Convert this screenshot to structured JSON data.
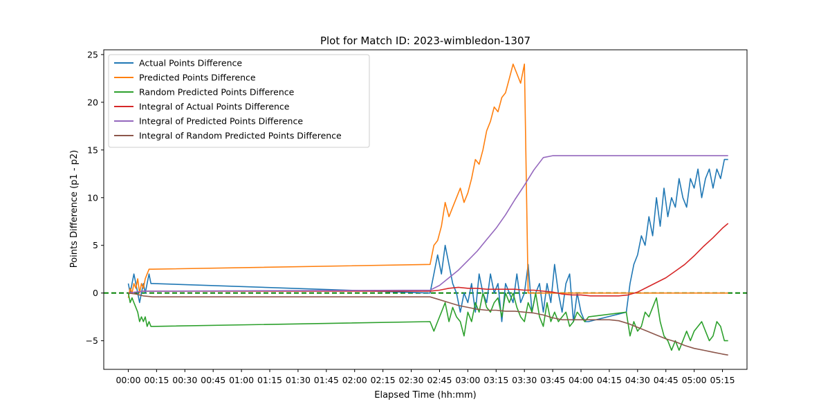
{
  "chart_data": {
    "type": "line",
    "title": "Plot for Match ID: 2023-wimbledon-1307",
    "xlabel": "Elapsed Time (hh:mm)",
    "ylabel": "Points Difference (p1 - p2)",
    "x_unit": "minutes",
    "xlim": [
      -13,
      328
    ],
    "ylim": [
      -8,
      25.5
    ],
    "x_ticks": [
      0,
      15,
      30,
      45,
      60,
      75,
      90,
      105,
      120,
      135,
      150,
      165,
      180,
      195,
      210,
      225,
      240,
      255,
      270,
      285,
      300,
      315
    ],
    "x_tick_labels": [
      "00:00",
      "00:15",
      "00:30",
      "00:45",
      "01:00",
      "01:15",
      "01:30",
      "01:45",
      "02:00",
      "02:15",
      "02:30",
      "02:45",
      "03:00",
      "03:15",
      "03:30",
      "03:45",
      "04:00",
      "04:15",
      "04:30",
      "04:45",
      "05:00",
      "05:15"
    ],
    "y_ticks": [
      -5,
      0,
      5,
      10,
      15,
      20,
      25
    ],
    "y_tick_labels": [
      "−5",
      "0",
      "5",
      "10",
      "15",
      "20",
      "25"
    ],
    "grid": false,
    "legend_position": "upper-left",
    "reference_line": {
      "y": 0,
      "color": "#008000",
      "style": "dashed"
    },
    "series": [
      {
        "name": "Actual Points Difference",
        "color": "#1f77b4",
        "x": [
          0,
          1,
          2,
          3,
          4,
          5,
          6,
          7,
          8,
          9,
          10,
          11,
          12,
          13,
          160,
          162,
          164,
          166,
          168,
          170,
          172,
          174,
          176,
          178,
          180,
          182,
          184,
          186,
          188,
          190,
          192,
          194,
          196,
          198,
          200,
          202,
          204,
          206,
          208,
          210,
          212,
          214,
          216,
          218,
          220,
          222,
          224,
          226,
          228,
          230,
          232,
          234,
          236,
          238,
          240,
          242,
          244,
          264,
          266,
          268,
          270,
          272,
          274,
          276,
          278,
          280,
          282,
          284,
          286,
          288,
          290,
          292,
          294,
          296,
          298,
          300,
          302,
          304,
          306,
          308,
          310,
          312,
          314,
          316,
          318
        ],
        "y": [
          1,
          0,
          1,
          2,
          1,
          0,
          -1,
          0,
          1,
          0,
          1,
          2,
          1,
          1,
          0,
          2,
          4,
          2,
          5,
          3,
          1,
          0,
          -2,
          0,
          -1,
          1,
          -2,
          2,
          0,
          -1,
          2,
          0,
          1,
          -3,
          1,
          0,
          -1,
          2,
          -1,
          0,
          3,
          -2,
          0,
          1,
          -2,
          1,
          -1,
          3,
          0,
          -2,
          1,
          2,
          -3,
          0,
          -2,
          -3,
          -3,
          -2,
          1,
          3,
          4,
          6,
          5,
          8,
          6,
          10,
          7,
          11,
          8,
          10,
          9,
          12,
          10,
          9,
          12,
          11,
          13,
          10,
          12,
          13,
          11,
          13,
          12,
          14,
          14
        ]
      },
      {
        "name": "Predicted Points Difference",
        "color": "#ff7f0e",
        "x": [
          0,
          1,
          2,
          3,
          4,
          5,
          6,
          7,
          8,
          9,
          10,
          11,
          12,
          13,
          160,
          162,
          164,
          166,
          168,
          170,
          172,
          174,
          176,
          178,
          180,
          182,
          184,
          186,
          188,
          190,
          192,
          194,
          196,
          198,
          200,
          202,
          204,
          206,
          208,
          210,
          212,
          214,
          216,
          218,
          220,
          222,
          224,
          226,
          228,
          230,
          232,
          234,
          236,
          238,
          240,
          242,
          244,
          264,
          266,
          268,
          270,
          272,
          274,
          276,
          278,
          280,
          282,
          284,
          286,
          288,
          290,
          292,
          294,
          296,
          298,
          300,
          302,
          304,
          306,
          308,
          310,
          312,
          314,
          316,
          318
        ],
        "y": [
          -0.5,
          0.5,
          0,
          1,
          0.5,
          1.5,
          0,
          1,
          0.5,
          1.5,
          2,
          2.5,
          2.5,
          2.5,
          3,
          5,
          5.5,
          7,
          9.5,
          8,
          9,
          10,
          11,
          9.5,
          10.5,
          12,
          14,
          13.5,
          15,
          17,
          18,
          19.5,
          19,
          20.5,
          21,
          22.5,
          24,
          23,
          22,
          24,
          0,
          0,
          0,
          0,
          0,
          0,
          0,
          0,
          0,
          0,
          0,
          0,
          0,
          0,
          0,
          0,
          0,
          0,
          0,
          0,
          0,
          0,
          0,
          0,
          0,
          0,
          0,
          0,
          0,
          0,
          0,
          0,
          0,
          0,
          0,
          0,
          0,
          0,
          0,
          0,
          0,
          0,
          0,
          0,
          0
        ]
      },
      {
        "name": "Random Predicted Points Difference",
        "color": "#2ca02c",
        "x": [
          0,
          1,
          2,
          3,
          4,
          5,
          6,
          7,
          8,
          9,
          10,
          11,
          12,
          13,
          160,
          162,
          164,
          166,
          168,
          170,
          172,
          174,
          176,
          178,
          180,
          182,
          184,
          186,
          188,
          190,
          192,
          194,
          196,
          198,
          200,
          202,
          204,
          206,
          208,
          210,
          212,
          214,
          216,
          218,
          220,
          222,
          224,
          226,
          228,
          230,
          232,
          234,
          236,
          238,
          240,
          242,
          244,
          264,
          266,
          268,
          270,
          272,
          274,
          276,
          278,
          280,
          282,
          284,
          286,
          288,
          290,
          292,
          294,
          296,
          298,
          300,
          302,
          304,
          306,
          308,
          310,
          312,
          314,
          316,
          318
        ],
        "y": [
          0,
          -1,
          -0.5,
          -1,
          -1.5,
          -2,
          -3,
          -2.5,
          -3,
          -2.5,
          -3.5,
          -3,
          -3.5,
          -3.5,
          -3,
          -4,
          -3,
          -2,
          -1,
          -3,
          -1.5,
          -2.5,
          -3,
          -4.5,
          -2,
          -3,
          -1,
          -2,
          0,
          -1.5,
          -2,
          -1,
          -0.5,
          -2.5,
          0,
          -1,
          0,
          -1.5,
          -2.5,
          -3,
          -1,
          -2,
          0,
          -2.5,
          -3.5,
          -1,
          -3,
          -2,
          -3,
          -2.5,
          -2,
          -3.5,
          -3,
          -2,
          -2.5,
          -3,
          -2.5,
          -2,
          -4.5,
          -3,
          -4,
          -3.5,
          -2,
          -2.5,
          -1.5,
          -0.5,
          -3,
          -4.5,
          -5,
          -6,
          -5,
          -6,
          -5,
          -4,
          -5,
          -4,
          -3.5,
          -3,
          -4,
          -5,
          -4.5,
          -3,
          -3.5,
          -5,
          -5
        ]
      },
      {
        "name": "Integral of Actual Points Difference",
        "color": "#d62728",
        "x": [
          0,
          4,
          8,
          13,
          160,
          165,
          170,
          175,
          180,
          185,
          190,
          195,
          200,
          205,
          210,
          215,
          220,
          225,
          230,
          235,
          240,
          245,
          250,
          255,
          260,
          265,
          270,
          275,
          280,
          285,
          290,
          295,
          300,
          305,
          310,
          315,
          318
        ],
        "y": [
          0,
          0.1,
          0.2,
          0.2,
          0.2,
          0.3,
          0.5,
          0.6,
          0.5,
          0.5,
          0.4,
          0.4,
          0.4,
          0.4,
          0.3,
          0.3,
          0.2,
          0.1,
          -0.1,
          -0.2,
          -0.2,
          -0.3,
          -0.3,
          -0.3,
          -0.3,
          -0.2,
          0.1,
          0.6,
          1.1,
          1.6,
          2.3,
          3.0,
          3.9,
          4.9,
          5.8,
          6.8,
          7.3
        ]
      },
      {
        "name": "Integral of Predicted Points Difference",
        "color": "#9467bd",
        "x": [
          0,
          4,
          8,
          13,
          160,
          165,
          170,
          175,
          180,
          185,
          190,
          195,
          200,
          205,
          210,
          215,
          220,
          225,
          230,
          318
        ],
        "y": [
          0,
          0.1,
          0.2,
          0.2,
          0.3,
          0.8,
          1.6,
          2.4,
          3.4,
          4.4,
          5.6,
          6.8,
          8.2,
          9.8,
          11.3,
          12.9,
          14.2,
          14.4,
          14.4,
          14.4
        ]
      },
      {
        "name": "Integral of Random Predicted Points Difference",
        "color": "#8c564b",
        "x": [
          0,
          4,
          8,
          13,
          160,
          165,
          170,
          175,
          180,
          185,
          190,
          195,
          200,
          205,
          210,
          215,
          220,
          225,
          230,
          235,
          240,
          245,
          250,
          255,
          260,
          265,
          270,
          275,
          280,
          285,
          290,
          295,
          300,
          305,
          310,
          315,
          318
        ],
        "y": [
          0,
          -0.1,
          -0.3,
          -0.4,
          -0.4,
          -0.7,
          -1.0,
          -1.3,
          -1.5,
          -1.7,
          -1.8,
          -1.8,
          -1.9,
          -1.9,
          -2.0,
          -2.1,
          -2.3,
          -2.6,
          -2.8,
          -2.8,
          -2.8,
          -2.8,
          -2.8,
          -2.8,
          -2.9,
          -3.2,
          -3.6,
          -4.0,
          -4.4,
          -4.8,
          -5.1,
          -5.5,
          -5.8,
          -6.0,
          -6.2,
          -6.4,
          -6.5
        ]
      }
    ]
  }
}
